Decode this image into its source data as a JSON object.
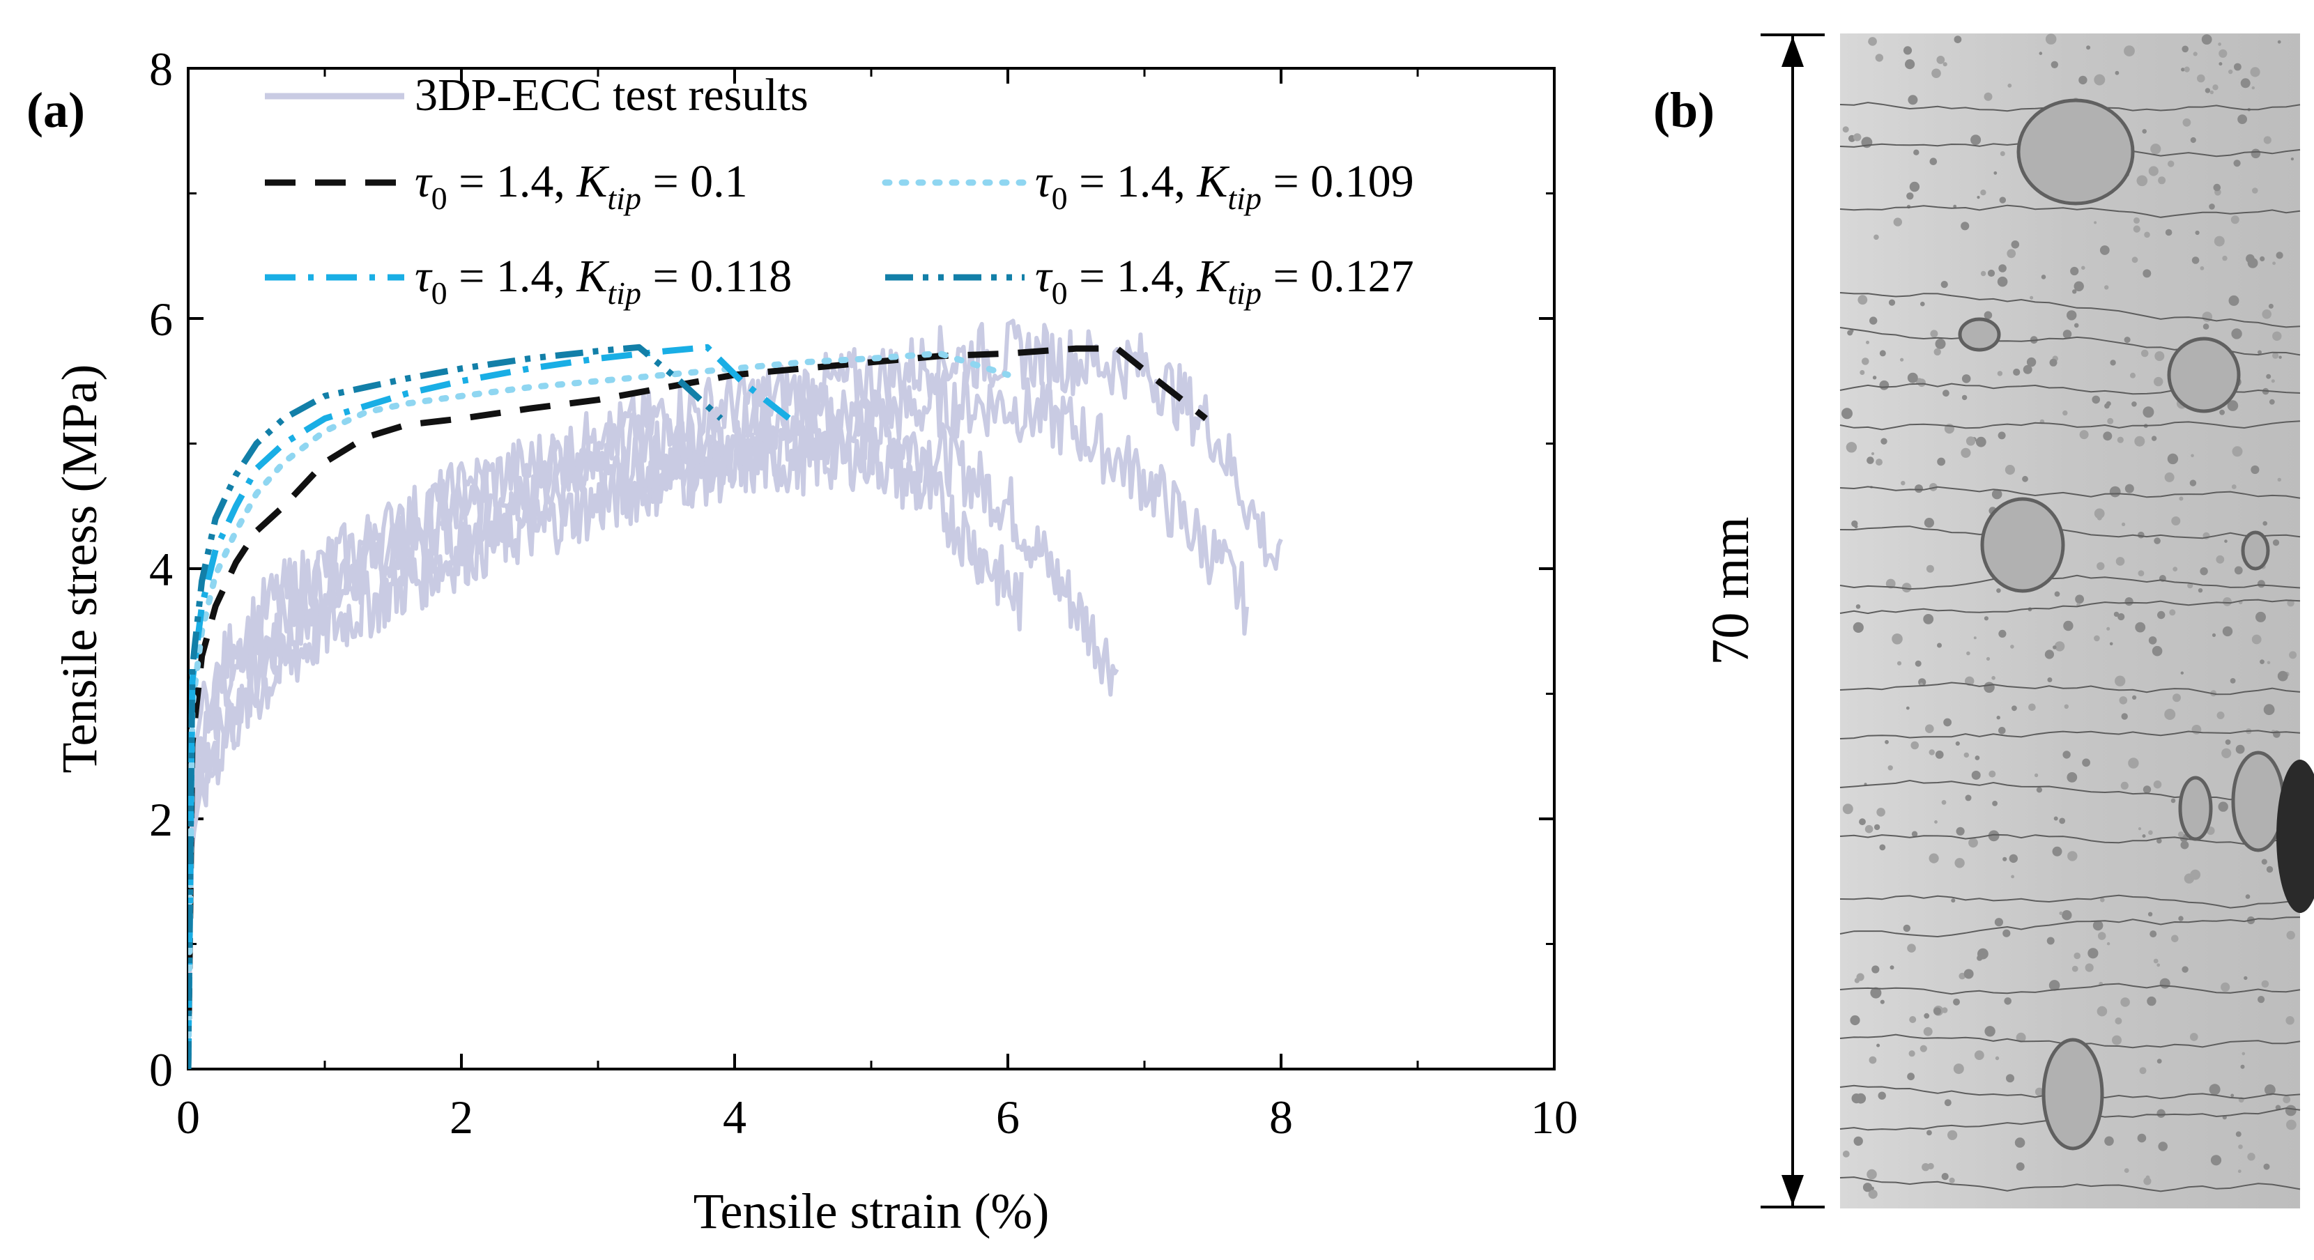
{
  "panels": {
    "a": "(a)",
    "b": "(b)"
  },
  "photo": {
    "dimension_label": "70 mm"
  },
  "colors": {
    "test_results": "#c9cbe3",
    "k0100": "#111111",
    "k0109": "#8fd6f1",
    "k0118": "#19aee5",
    "k0127": "#127fa8"
  },
  "chart_data": {
    "type": "line",
    "title": "",
    "xlabel": "Tensile strain (%)",
    "ylabel": "Tensile stress (MPa)",
    "xlim": [
      0,
      10
    ],
    "ylim": [
      0,
      8
    ],
    "xticks": [
      0,
      2,
      4,
      6,
      8,
      10
    ],
    "yticks": [
      0,
      2,
      4,
      6,
      8
    ],
    "grid": false,
    "legend_position": "top-left",
    "series": [
      {
        "name": "3DP-ECC test results",
        "legend_label": "3DP-ECC test results",
        "style": "solid",
        "color": "#c9cbe3",
        "curves": [
          {
            "x": [
              0,
              0.03,
              0.1,
              0.3,
              0.6,
              1.0,
              1.5,
              2.0,
              2.5,
              3.0,
              3.5,
              4.0,
              4.5,
              5.0,
              5.5,
              6.0,
              6.3,
              6.6,
              6.8
            ],
            "y": [
              0,
              2.0,
              2.5,
              2.9,
              3.4,
              3.8,
              4.2,
              4.4,
              4.6,
              4.8,
              4.9,
              5.0,
              5.1,
              5.2,
              5.0,
              4.6,
              4.1,
              3.6,
              3.25
            ]
          },
          {
            "x": [
              0,
              0.03,
              0.1,
              0.3,
              0.6,
              1.0,
              1.5,
              2.0,
              2.5,
              3.0,
              3.5,
              4.0,
              4.5,
              5.0,
              5.5,
              6.0,
              6.5,
              7.0,
              7.5,
              7.75
            ],
            "y": [
              0,
              2.2,
              2.7,
              3.2,
              3.6,
              4.0,
              4.3,
              4.6,
              4.8,
              5.0,
              5.1,
              5.2,
              5.3,
              5.3,
              5.4,
              5.4,
              5.2,
              4.8,
              4.2,
              3.8
            ]
          },
          {
            "x": [
              0,
              0.03,
              0.1,
              0.3,
              0.6,
              1.0,
              1.5,
              2.0,
              2.5,
              3.0,
              3.5,
              4.0,
              4.5,
              5.0,
              5.5,
              6.0,
              6.5,
              7.0,
              7.5,
              8.0
            ],
            "y": [
              0,
              2.4,
              2.9,
              3.4,
              3.8,
              4.1,
              4.4,
              4.7,
              4.9,
              5.1,
              5.3,
              5.4,
              5.5,
              5.6,
              5.75,
              5.8,
              5.75,
              5.7,
              5.2,
              4.05
            ]
          },
          {
            "x": [
              0,
              0.03,
              0.1,
              0.3,
              0.6,
              1.0,
              1.5,
              2.0,
              2.5,
              3.0,
              3.5,
              4.0,
              4.5,
              5.0,
              5.5,
              5.8,
              6.1
            ],
            "y": [
              0,
              1.8,
              2.3,
              2.8,
              3.2,
              3.6,
              3.9,
              4.2,
              4.4,
              4.6,
              4.8,
              4.9,
              4.95,
              5.0,
              4.6,
              4.2,
              3.8
            ]
          }
        ]
      },
      {
        "name": "τ0 = 1.4, Ktip = 0.1",
        "legend_prefix": "τ",
        "legend_sub0": "0",
        "legend_mid": " = 1.4, ",
        "legend_k": "K",
        "legend_sub": "tip",
        "legend_value": " = 0.1",
        "style": "dashed",
        "color": "#111111",
        "x": [
          0,
          0.03,
          0.1,
          0.2,
          0.35,
          0.5,
          0.7,
          1.0,
          1.3,
          1.6,
          2.0,
          2.5,
          3.0,
          3.5,
          4.0,
          4.5,
          5.0,
          5.5,
          6.0,
          6.5,
          6.8,
          7.1,
          7.45
        ],
        "y": [
          0,
          2.6,
          3.3,
          3.7,
          4.05,
          4.3,
          4.5,
          4.85,
          5.05,
          5.15,
          5.2,
          5.28,
          5.35,
          5.45,
          5.55,
          5.6,
          5.65,
          5.7,
          5.72,
          5.76,
          5.76,
          5.5,
          5.2
        ]
      },
      {
        "name": "τ0 = 1.4, Ktip = 0.109",
        "legend_prefix": "τ",
        "legend_sub0": "0",
        "legend_mid": " = 1.4, ",
        "legend_k": "K",
        "legend_sub": "tip",
        "legend_value": " = 0.109",
        "style": "dotted",
        "color": "#8fd6f1",
        "x": [
          0,
          0.03,
          0.1,
          0.2,
          0.35,
          0.5,
          0.7,
          1.0,
          1.3,
          1.6,
          2.0,
          2.5,
          3.0,
          3.5,
          4.0,
          4.5,
          5.0,
          5.5,
          6.0
        ],
        "y": [
          0,
          2.9,
          3.5,
          3.95,
          4.3,
          4.6,
          4.85,
          5.1,
          5.25,
          5.32,
          5.38,
          5.45,
          5.5,
          5.55,
          5.6,
          5.65,
          5.68,
          5.72,
          5.55
        ]
      },
      {
        "name": "τ0 = 1.4, Ktip = 0.118",
        "legend_prefix": "τ",
        "legend_sub0": "0",
        "legend_mid": " = 1.4, ",
        "legend_k": "K",
        "legend_sub": "tip",
        "legend_value": " = 0.118",
        "style": "dashdot",
        "color": "#19aee5",
        "x": [
          0,
          0.03,
          0.1,
          0.2,
          0.35,
          0.5,
          0.7,
          1.0,
          1.3,
          1.6,
          2.0,
          2.5,
          3.0,
          3.5,
          3.8,
          4.05,
          4.4
        ],
        "y": [
          0,
          3.1,
          3.7,
          4.15,
          4.5,
          4.8,
          5.0,
          5.2,
          5.3,
          5.4,
          5.5,
          5.6,
          5.68,
          5.74,
          5.77,
          5.5,
          5.2
        ]
      },
      {
        "name": "τ0 = 1.4, Ktip = 0.127",
        "legend_prefix": "τ",
        "legend_sub0": "0",
        "legend_mid": " = 1.4, ",
        "legend_k": "K",
        "legend_sub": "tip",
        "legend_value": " = 0.127",
        "style": "dashdotdot",
        "color": "#127fa8",
        "x": [
          0,
          0.03,
          0.1,
          0.2,
          0.35,
          0.5,
          0.7,
          1.0,
          1.3,
          1.6,
          2.0,
          2.5,
          3.0,
          3.3,
          3.6,
          3.9
        ],
        "y": [
          0,
          3.2,
          3.9,
          4.4,
          4.75,
          5.0,
          5.2,
          5.38,
          5.45,
          5.52,
          5.6,
          5.68,
          5.74,
          5.77,
          5.5,
          5.2
        ]
      }
    ]
  }
}
